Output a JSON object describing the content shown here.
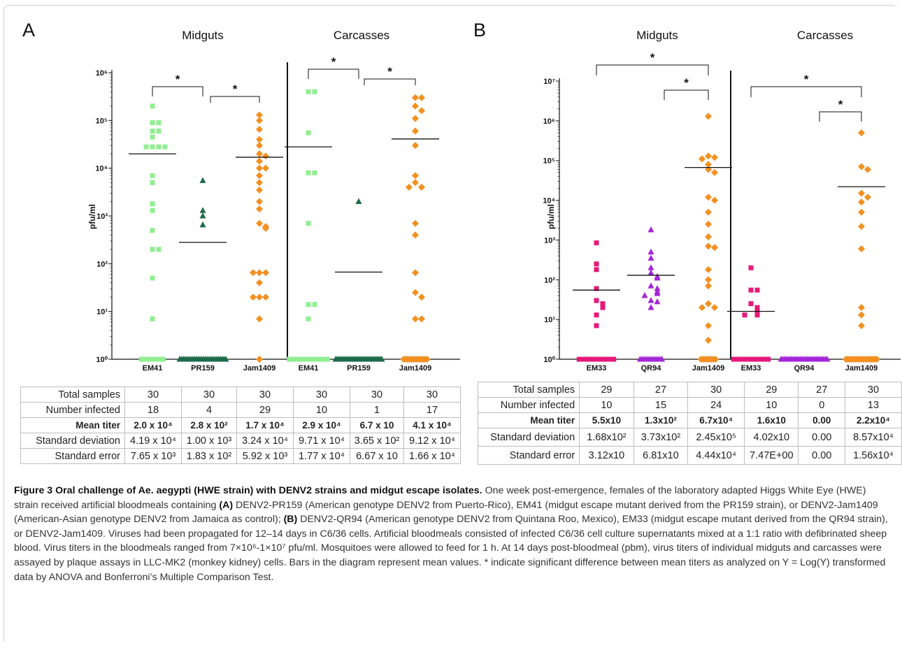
{
  "figure": {
    "caption_title": "Figure 3 Oral challenge of Ae. aegypti (HWE strain) with DENV2 strains and midgut escape isolates.",
    "caption_segments": [
      {
        "text": "One week post-emergence, females of the laboratory adapted Higgs White Eye (HWE) strain received artificial bloodmeals containing ",
        "bold": false
      },
      {
        "text": "(A)",
        "bold": true
      },
      {
        "text": " DENV2-PR159 (American genotype DENV2 from Puerto-Rico), EM41 (midgut escape mutant derived from the PR159 strain), or DENV2-Jam1409 (American-Asian genotype DENV2 from Jamaica as control); ",
        "bold": false
      },
      {
        "text": "(B)",
        "bold": true
      },
      {
        "text": " DENV2-QR94 (American genotype DENV2 from Quintana Roo, Mexico), EM33 (midgut escape mutant derived from the QR94 strain), or DENV2-Jam1409. Viruses had been propagated for 12–14 days in C6/36 cells. Artificial bloodmeals consisted of infected C6/36 cell culture supernatants mixed at a 1:1 ratio with defibrinated sheep blood. Virus titers in the bloodmeals ranged from 7×10⁶-1×10⁷ pfu/ml. Mosquitoes were allowed to feed for 1 h. At 14 days post-bloodmeal (pbm), virus titers of individual midguts and carcasses were assayed by plaque assays in LLC-MK2 (monkey kidney) cells. Bars in the diagram represent mean values. * indicate significant difference between mean titers as analyzed on Y = Log(Y) transformed data by ANOVA and Bonferroni’s Multiple Comparison Test.",
        "bold": false
      }
    ]
  },
  "tables": {
    "A": {
      "rows": [
        {
          "label": "Total samples",
          "bold": false,
          "values": [
            "30",
            "30",
            "30",
            "30",
            "30",
            "30"
          ]
        },
        {
          "label": "Number infected",
          "bold": false,
          "values": [
            "18",
            "4",
            "29",
            "10",
            "1",
            "17"
          ]
        },
        {
          "label": "Mean titer",
          "bold": true,
          "values": [
            "2.0 x 10⁴",
            "2.8 x 10²",
            "1.7 x 10⁴",
            "2.9 x 10⁴",
            "6.7 x 10",
            "4.1 x 10⁴"
          ]
        },
        {
          "label": "Standard deviation",
          "bold": false,
          "values": [
            "4.19 x 10⁴",
            "1.00 x 10³",
            "3.24 x 10⁴",
            "9.71 x 10⁴",
            "3.65 x 10²",
            "9.12 x 10⁴"
          ]
        },
        {
          "label": "Standard error",
          "bold": false,
          "values": [
            "7.65 x 10³",
            "1.83 x 10²",
            "5.92 x 10³",
            "1.77 x 10⁴",
            "6.67 x 10",
            "1.66 x 10⁴"
          ]
        }
      ]
    },
    "B": {
      "rows": [
        {
          "label": "Total samples",
          "bold": false,
          "values": [
            "29",
            "27",
            "30",
            "29",
            "27",
            "30"
          ]
        },
        {
          "label": "Number infected",
          "bold": false,
          "values": [
            "10",
            "15",
            "24",
            "10",
            "0",
            "13"
          ]
        },
        {
          "label": "Mean titer",
          "bold": true,
          "values": [
            "5.5x10",
            "1.3x10²",
            "6.7x10⁴",
            "1.6x10",
            "0.00",
            "2.2x10⁴"
          ]
        },
        {
          "label": "Standard deviation",
          "bold": false,
          "values": [
            "1.68x10²",
            "3.73x10²",
            "2.45x10⁵",
            "4.02x10",
            "0.00",
            "8.57x10⁴"
          ]
        },
        {
          "label": "Standard error",
          "bold": false,
          "values": [
            "3.12x10",
            "6.81x10",
            "4.44x10⁴",
            "7.47E+00",
            "0.00",
            "1.56x10⁴"
          ]
        }
      ]
    }
  },
  "chart_data": [
    {
      "type": "scatter",
      "panel": "A",
      "ylabel": "pfu/ml",
      "yscale": "log",
      "ylim": [
        1,
        1000000
      ],
      "yticks": [
        "10⁰",
        "10¹",
        "10²",
        "10³",
        "10⁴",
        "10⁵",
        "10⁶"
      ],
      "groups": [
        {
          "title": "Midguts",
          "categories": [
            "EM41",
            "PR159",
            "Jam1409"
          ],
          "significance": [
            {
              "from": "EM41",
              "to": "PR159",
              "label": "*"
            },
            {
              "from": "PR159",
              "to": "Jam1409",
              "label": "*"
            }
          ]
        },
        {
          "title": "Carcasses",
          "categories": [
            "EM41",
            "PR159",
            "Jam1409"
          ],
          "significance": [
            {
              "from": "EM41",
              "to": "PR159",
              "label": "*"
            },
            {
              "from": "PR159",
              "to": "Jam1409",
              "label": "*"
            }
          ]
        }
      ],
      "series": [
        {
          "group": 0,
          "category": "EM41",
          "marker": "square",
          "color": "#90ee90",
          "mean": 20000,
          "values": [
            200000,
            90000,
            90000,
            60000,
            60000,
            45000,
            28000,
            28000,
            28000,
            28000,
            7000,
            5000,
            1800,
            1300,
            500,
            200,
            200,
            50,
            7
          ],
          "zeros": 12
        },
        {
          "group": 0,
          "category": "PR159",
          "marker": "triangle",
          "color": "#1e6b4a",
          "mean": 280,
          "values": [
            5500,
            1300,
            1000,
            650
          ],
          "zeros": 26
        },
        {
          "group": 0,
          "category": "Jam1409",
          "marker": "diamond",
          "color": "#f39020",
          "mean": 17000,
          "values": [
            130000,
            100000,
            65000,
            40000,
            30000,
            20000,
            18000,
            14000,
            10000,
            10000,
            7000,
            5000,
            3500,
            2000,
            1400,
            700,
            600,
            550,
            65,
            65,
            65,
            40,
            20,
            20,
            20,
            7,
            1
          ],
          "zeros": 1
        },
        {
          "group": 1,
          "category": "EM41",
          "marker": "square",
          "color": "#90ee90",
          "mean": 28000,
          "values": [
            400000,
            400000,
            55000,
            8000,
            8000,
            700,
            14,
            14,
            7
          ],
          "zeros": 21
        },
        {
          "group": 1,
          "category": "PR159",
          "marker": "triangle",
          "color": "#1e6b4a",
          "mean": 67,
          "values": [
            2000
          ],
          "zeros": 29
        },
        {
          "group": 1,
          "category": "Jam1409",
          "marker": "diamond",
          "color": "#f39020",
          "mean": 41000,
          "values": [
            300000,
            300000,
            200000,
            160000,
            110000,
            60000,
            30000,
            7000,
            5000,
            4000,
            4000,
            700,
            400,
            65,
            25,
            20,
            7,
            7
          ],
          "zeros": 13
        }
      ]
    },
    {
      "type": "scatter",
      "panel": "B",
      "ylabel": "pfu/ml",
      "yscale": "log",
      "ylim": [
        1,
        10000000
      ],
      "yticks": [
        "10⁰",
        "10¹",
        "10²",
        "10³",
        "10⁴",
        "10⁵",
        "10⁶",
        "10⁷"
      ],
      "groups": [
        {
          "title": "Midguts",
          "categories": [
            "EM33",
            "QR94",
            "Jam1409"
          ],
          "significance": [
            {
              "from": "EM33",
              "to": "Jam1409",
              "label": "*"
            },
            {
              "from": "QR94",
              "to": "Jam1409",
              "label": "*"
            }
          ]
        },
        {
          "title": "Carcasses",
          "categories": [
            "EM33",
            "QR94",
            "Jam1409"
          ],
          "significance": [
            {
              "from": "EM33",
              "to": "Jam1409",
              "label": "*"
            },
            {
              "from": "QR94",
              "to": "Jam1409",
              "label": "*"
            }
          ]
        }
      ],
      "series": [
        {
          "group": 0,
          "category": "EM33",
          "marker": "square",
          "color": "#e6197a",
          "mean": 55,
          "values": [
            850,
            250,
            180,
            60,
            30,
            25,
            20,
            13,
            7
          ],
          "zeros": 19
        },
        {
          "group": 0,
          "category": "QR94",
          "marker": "triangle",
          "color": "#a426d8",
          "mean": 130,
          "values": [
            1800,
            500,
            350,
            200,
            150,
            120,
            110,
            70,
            60,
            50,
            45,
            40,
            30,
            28,
            20
          ],
          "zeros": 12
        },
        {
          "group": 0,
          "category": "Jam1409",
          "marker": "diamond",
          "color": "#f39020",
          "mean": 67000,
          "values": [
            1300000,
            130000,
            120000,
            110000,
            80000,
            60000,
            50000,
            12000,
            10000,
            5000,
            2500,
            1200,
            700,
            650,
            180,
            100,
            70,
            25,
            20,
            20,
            7,
            3
          ],
          "zeros": 8
        },
        {
          "group": 1,
          "category": "EM33",
          "marker": "square",
          "color": "#e6197a",
          "mean": 16,
          "values": [
            200,
            55,
            55,
            25,
            20,
            18,
            14,
            13,
            13
          ],
          "zeros": 19
        },
        {
          "group": 1,
          "category": "QR94",
          "marker": "triangle",
          "color": "#a426d8",
          "mean": null,
          "values": [],
          "zeros": 27
        },
        {
          "group": 1,
          "category": "Jam1409",
          "marker": "diamond",
          "color": "#f39020",
          "mean": 22000,
          "values": [
            500000,
            70000,
            60000,
            15000,
            12000,
            9000,
            5000,
            2200,
            600,
            20,
            13,
            7
          ],
          "zeros": 17
        }
      ]
    }
  ],
  "panel_letters": {
    "A": "A",
    "B": "B"
  }
}
